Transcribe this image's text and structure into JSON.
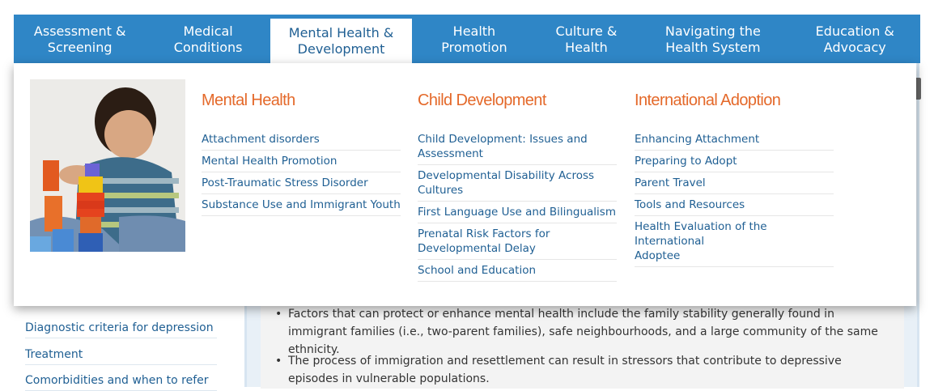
{
  "nav": {
    "tabs": [
      {
        "label": "Assessment &\nScreening"
      },
      {
        "label": "Medical\nConditions"
      },
      {
        "label": "Mental Health &\nDevelopment"
      },
      {
        "label": "Health\nPromotion"
      },
      {
        "label": "Culture &\nHealth"
      },
      {
        "label": "Navigating the\nHealth System"
      },
      {
        "label": "Education &\nAdvocacy"
      }
    ]
  },
  "mega_menu": {
    "columns": [
      {
        "title": "Mental Health",
        "items": [
          "Attachment disorders",
          "Mental Health Promotion",
          "Post-Traumatic Stress Disorder",
          "Substance Use and Immigrant Youth"
        ]
      },
      {
        "title": "Child Development",
        "items": [
          "Child Development: Issues and\nAssessment",
          "Developmental Disability Across\nCultures",
          "First Language Use and Bilingualism",
          "Prenatal Risk Factors for\nDevelopmental Delay",
          "School and Education"
        ]
      },
      {
        "title": "International Adoption",
        "items": [
          "Enhancing Attachment",
          "Preparing to Adopt",
          "Parent Travel",
          "Tools and Resources",
          "Health Evaluation of the International\nAdoptee"
        ]
      }
    ]
  },
  "sidebar": {
    "links": [
      "Diagnostic criteria for depression",
      "Treatment",
      "Comorbidities and when to refer"
    ]
  },
  "content": {
    "bullets": [
      "Factors that can protect or enhance mental health include the family stability generally found in immigrant families (i.e., two-parent families), safe neighbourhoods, and a large community of the same ethnicity.",
      "The process of immigration and resettlement can result in stressors that contribute to depressive episodes in vulnerable populations."
    ]
  },
  "colors": {
    "nav_bg": "#2f86c6",
    "accent_orange": "#e4692a",
    "link_blue": "#1f5f93"
  }
}
